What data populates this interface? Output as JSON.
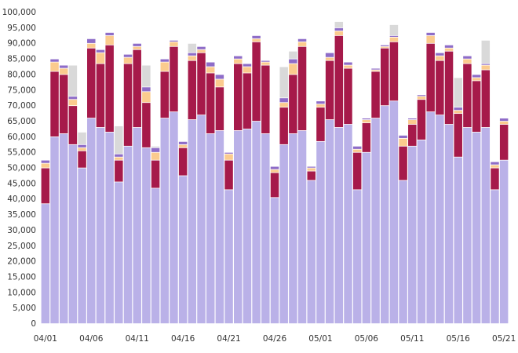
{
  "chart_data": {
    "type": "stacked_bar",
    "categories": [
      "04/01",
      null,
      null,
      null,
      null,
      "04/06",
      null,
      null,
      null,
      null,
      "04/11",
      null,
      null,
      null,
      null,
      "04/16",
      null,
      null,
      null,
      null,
      "04/21",
      null,
      null,
      null,
      null,
      "04/26",
      null,
      null,
      null,
      null,
      "05/01",
      null,
      null,
      null,
      null,
      "05/06",
      null,
      null,
      null,
      null,
      "05/11",
      null,
      null,
      null,
      null,
      "05/16",
      null,
      null,
      null,
      null,
      "05/21"
    ],
    "series": [
      {
        "color": "#bab1e8",
        "values": [
          38500,
          60000,
          61000,
          57500,
          50000,
          66000,
          63000,
          61500,
          45500,
          57000,
          63000,
          56500,
          43500,
          66000,
          68000,
          47500,
          65500,
          67000,
          61000,
          62000,
          43000,
          62000,
          62500,
          65000,
          61000,
          40500,
          57500,
          61000,
          62000,
          46000,
          58500,
          65500,
          63000,
          64000,
          43000,
          55000,
          66000,
          70000,
          71500,
          46000,
          57000,
          59000,
          68000,
          67000,
          64000,
          53500,
          63000,
          61500,
          63000,
          43000,
          52500
        ]
      },
      {
        "color": "#a61a4a",
        "values": [
          11500,
          21000,
          19000,
          12500,
          5500,
          22500,
          20500,
          28000,
          7000,
          26500,
          25000,
          14500,
          9000,
          15000,
          21000,
          9000,
          19000,
          20000,
          19500,
          14000,
          9500,
          21500,
          18000,
          25500,
          22000,
          8000,
          12000,
          19000,
          27000,
          3000,
          11000,
          19000,
          29500,
          18000,
          12000,
          9500,
          15000,
          18500,
          19000,
          11000,
          7000,
          13000,
          22000,
          17500,
          23500,
          14000,
          20500,
          16500,
          18500,
          7000,
          11500
        ]
      },
      {
        "color": "#fbcb8e",
        "values": [
          1500,
          3000,
          2000,
          2000,
          1000,
          1500,
          3500,
          3000,
          1000,
          2000,
          1000,
          3500,
          2500,
          3000,
          1500,
          1000,
          1500,
          1000,
          2000,
          2500,
          2000,
          1500,
          2000,
          1000,
          1000,
          1000,
          1500,
          3500,
          1500,
          1000,
          1000,
          1000,
          1500,
          1000,
          1000,
          1000,
          500,
          500,
          1500,
          2500,
          1500,
          1000,
          2500,
          1500,
          1000,
          1000,
          1500,
          1000,
          1500,
          1000,
          1000
        ]
      },
      {
        "color": "#8e6cc8",
        "values": [
          1000,
          1000,
          1000,
          1000,
          1000,
          1500,
          1000,
          1000,
          1000,
          1000,
          1000,
          1500,
          1500,
          1000,
          500,
          1000,
          1000,
          1000,
          1500,
          1500,
          500,
          1000,
          1000,
          1000,
          500,
          1000,
          1500,
          1500,
          1000,
          500,
          1000,
          1500,
          1000,
          1000,
          1000,
          500,
          500,
          500,
          500,
          1000,
          500,
          500,
          1000,
          1000,
          1000,
          1000,
          1000,
          1000,
          500,
          1000,
          1000
        ]
      },
      {
        "color": "#d9d9d9",
        "values": [
          0,
          0,
          0,
          10000,
          4000,
          0,
          0,
          0,
          9000,
          0,
          0,
          7000,
          500,
          0,
          0,
          0,
          3000,
          0,
          0,
          0,
          0,
          0,
          0,
          0,
          0,
          0,
          10000,
          2500,
          0,
          0,
          0,
          0,
          2000,
          0,
          0,
          0,
          0,
          0,
          3500,
          0,
          0,
          0,
          0,
          0,
          0,
          9500,
          0,
          0,
          7500,
          0,
          0
        ]
      }
    ],
    "ylim": [
      0,
      100000
    ],
    "yticks": [
      0,
      {
        "value": 5000,
        "label": "5,000"
      },
      {
        "value": 10000,
        "label": "10,000"
      },
      {
        "value": 15000,
        "label": "15,000"
      },
      {
        "value": 20000,
        "label": "20,000"
      },
      {
        "value": 25000,
        "label": "25,000"
      },
      {
        "value": 30000,
        "label": "30,000"
      },
      {
        "value": 35000,
        "label": "35,000"
      },
      {
        "value": 40000,
        "label": "40,000"
      },
      {
        "value": 45000,
        "label": "45,000"
      },
      {
        "value": 50000,
        "label": "50,000"
      },
      {
        "value": 55000,
        "label": "55,000"
      },
      {
        "value": 60000,
        "label": "60,000"
      },
      {
        "value": 65000,
        "label": "65,000"
      },
      {
        "value": 70000,
        "label": "70,000"
      },
      {
        "value": 75000,
        "label": "75,000"
      },
      {
        "value": 80000,
        "label": "80,000"
      },
      {
        "value": 85000,
        "label": "85,000"
      },
      {
        "value": 90000,
        "label": "90,000"
      },
      {
        "value": 95000,
        "label": "95,000"
      },
      {
        "value": 100000,
        "label": "100,000"
      }
    ],
    "grid": false
  }
}
